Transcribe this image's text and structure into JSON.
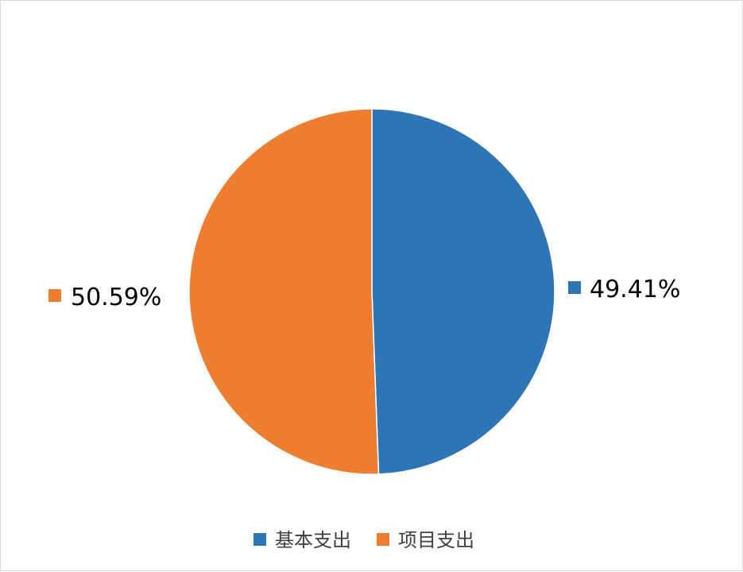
{
  "chart_data": {
    "type": "pie",
    "categories": [
      "基本支出",
      "项目支出"
    ],
    "values": [
      49.41,
      50.59
    ],
    "labels": [
      "49.41%",
      "50.59%"
    ],
    "colors": [
      "#2E75B6",
      "#ED7D31"
    ],
    "legend_position": "bottom",
    "title": ""
  }
}
